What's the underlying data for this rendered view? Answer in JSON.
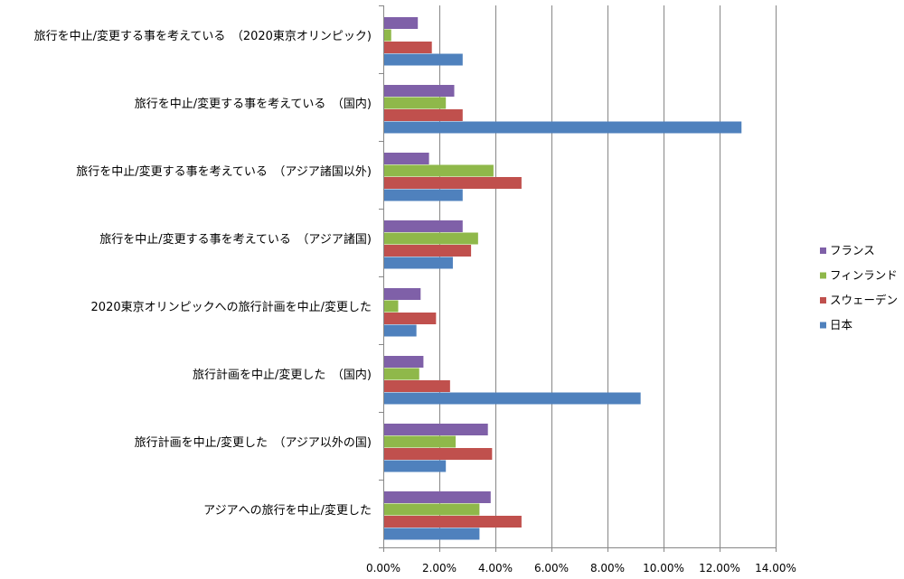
{
  "chart_data": {
    "type": "bar",
    "orientation": "horizontal",
    "title": "",
    "xlabel": "",
    "ylabel": "",
    "xlim": [
      0,
      0.14
    ],
    "x_ticks": [
      0,
      0.02,
      0.04,
      0.06,
      0.08,
      0.1,
      0.12,
      0.14
    ],
    "x_tick_labels": [
      "0.00%",
      "2.00%",
      "4.00%",
      "6.00%",
      "8.00%",
      "10.00%",
      "12.00%",
      "14.00%"
    ],
    "grid": "vertical",
    "legend_position": "right",
    "categories": [
      "旅行を中止/変更する事を考えている　（2020東京オリンピック)",
      "旅行を中止/変更する事を考えている　（国内)",
      "旅行を中止/変更する事を考えている　（アジア諸国以外)",
      "旅行を中止/変更する事を考えている　（アジア諸国)",
      "2020東京オリンピックへの旅行計画を中止/変更した",
      "旅行計画を中止/変更した　（国内)",
      "旅行計画を中止/変更した　（アジア以外の国)",
      "アジアへの旅行を中止/変更した"
    ],
    "series": [
      {
        "name": "フランス",
        "color": "#7F60A8",
        "values": [
          0.012,
          0.025,
          0.016,
          0.028,
          0.013,
          0.014,
          0.037,
          0.038
        ]
      },
      {
        "name": "フィンランド",
        "color": "#8FB84A",
        "values": [
          0.0025,
          0.022,
          0.039,
          0.0335,
          0.005,
          0.0125,
          0.0255,
          0.034
        ]
      },
      {
        "name": "スウェーデン",
        "color": "#C0504D",
        "values": [
          0.017,
          0.028,
          0.049,
          0.031,
          0.0185,
          0.0235,
          0.0385,
          0.049
        ]
      },
      {
        "name": "日本",
        "color": "#4F81BD",
        "values": [
          0.028,
          0.1275,
          0.028,
          0.0245,
          0.0115,
          0.0915,
          0.022,
          0.034
        ]
      }
    ]
  }
}
